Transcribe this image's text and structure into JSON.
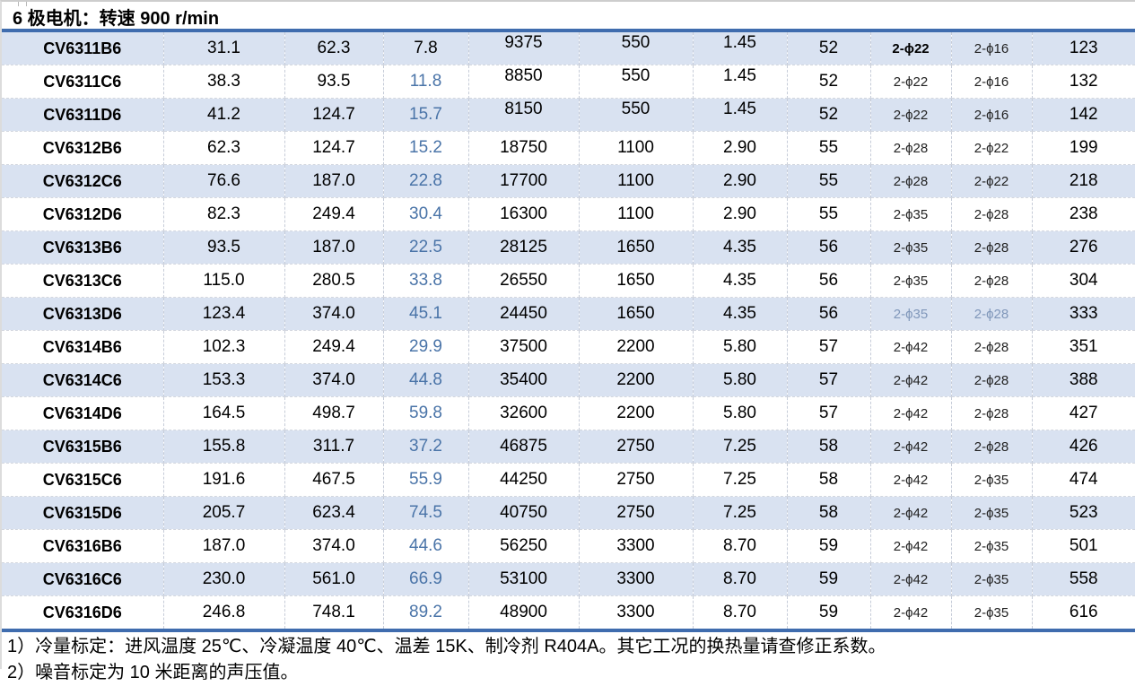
{
  "title": "6 极电机：转速 900 r/min",
  "table": {
    "rows": [
      {
        "cells": [
          "CV6311B6",
          "31.1",
          "62.3",
          "7.8",
          "9375",
          "550",
          "1.45",
          "52",
          "2-ϕ22",
          "2-ϕ16",
          "123"
        ]
      },
      {
        "cells": [
          "CV6311C6",
          "38.3",
          "93.5",
          "11.8",
          "8850",
          "550",
          "1.45",
          "52",
          "2-ϕ22",
          "2-ϕ16",
          "132"
        ]
      },
      {
        "cells": [
          "CV6311D6",
          "41.2",
          "124.7",
          "15.7",
          "8150",
          "550",
          "1.45",
          "52",
          "2-ϕ22",
          "2-ϕ16",
          "142"
        ]
      },
      {
        "cells": [
          "CV6312B6",
          "62.3",
          "124.7",
          "15.2",
          "18750",
          "1100",
          "2.90",
          "55",
          "2-ϕ28",
          "2-ϕ22",
          "199"
        ]
      },
      {
        "cells": [
          "CV6312C6",
          "76.6",
          "187.0",
          "22.8",
          "17700",
          "1100",
          "2.90",
          "55",
          "2-ϕ28",
          "2-ϕ22",
          "218"
        ]
      },
      {
        "cells": [
          "CV6312D6",
          "82.3",
          "249.4",
          "30.4",
          "16300",
          "1100",
          "2.90",
          "55",
          "2-ϕ35",
          "2-ϕ28",
          "238"
        ]
      },
      {
        "cells": [
          "CV6313B6",
          "93.5",
          "187.0",
          "22.5",
          "28125",
          "1650",
          "4.35",
          "56",
          "2-ϕ35",
          "2-ϕ28",
          "276"
        ]
      },
      {
        "cells": [
          "CV6313C6",
          "115.0",
          "280.5",
          "33.8",
          "26550",
          "1650",
          "4.35",
          "56",
          "2-ϕ35",
          "2-ϕ28",
          "304"
        ]
      },
      {
        "cells": [
          "CV6313D6",
          "123.4",
          "374.0",
          "45.1",
          "24450",
          "1650",
          "4.35",
          "56",
          "2-ϕ35",
          "2-ϕ28",
          "333"
        ]
      },
      {
        "cells": [
          "CV6314B6",
          "102.3",
          "249.4",
          "29.9",
          "37500",
          "2200",
          "5.80",
          "57",
          "2-ϕ42",
          "2-ϕ28",
          "351"
        ]
      },
      {
        "cells": [
          "CV6314C6",
          "153.3",
          "374.0",
          "44.8",
          "35400",
          "2200",
          "5.80",
          "57",
          "2-ϕ42",
          "2-ϕ28",
          "388"
        ]
      },
      {
        "cells": [
          "CV6314D6",
          "164.5",
          "498.7",
          "59.8",
          "32600",
          "2200",
          "5.80",
          "57",
          "2-ϕ42",
          "2-ϕ28",
          "427"
        ]
      },
      {
        "cells": [
          "CV6315B6",
          "155.8",
          "311.7",
          "37.2",
          "46875",
          "2750",
          "7.25",
          "58",
          "2-ϕ42",
          "2-ϕ28",
          "426"
        ]
      },
      {
        "cells": [
          "CV6315C6",
          "191.6",
          "467.5",
          "55.9",
          "44250",
          "2750",
          "7.25",
          "58",
          "2-ϕ42",
          "2-ϕ35",
          "474"
        ]
      },
      {
        "cells": [
          "CV6315D6",
          "205.7",
          "623.4",
          "74.5",
          "40750",
          "2750",
          "7.25",
          "58",
          "2-ϕ42",
          "2-ϕ35",
          "523"
        ]
      },
      {
        "cells": [
          "CV6316B6",
          "187.0",
          "374.0",
          "44.6",
          "56250",
          "3300",
          "8.70",
          "59",
          "2-ϕ42",
          "2-ϕ35",
          "501"
        ]
      },
      {
        "cells": [
          "CV6316C6",
          "230.0",
          "561.0",
          "66.9",
          "53100",
          "3300",
          "8.70",
          "59",
          "2-ϕ42",
          "2-ϕ35",
          "558"
        ]
      },
      {
        "cells": [
          "CV6316D6",
          "246.8",
          "748.1",
          "89.2",
          "48900",
          "3300",
          "8.70",
          "59",
          "2-ϕ42",
          "2-ϕ35",
          "616"
        ]
      }
    ]
  },
  "notes": [
    "1）冷量标定：进风温度 25℃、冷凝温度 40℃、温差 15K、制冷剂 R404A。其它工况的换热量请查修正系数。",
    "2）噪音标定为 10 米距离的声压值。"
  ],
  "colors": {
    "accent_line": "#3f6cae",
    "row_stripe": "#d9e2f1",
    "highlight_text": "#4a74a8",
    "muted_highlight_text": "#8097ba"
  }
}
